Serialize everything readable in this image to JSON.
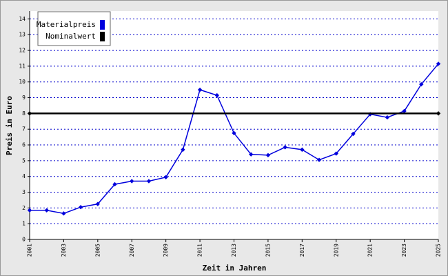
{
  "chart_data": {
    "type": "line",
    "x_label": "Zeit in Jahren",
    "y_label": "Preis in Euro",
    "series": [
      {
        "name": "Materialpreis",
        "color": "#0000dd",
        "x": [
          2001,
          2002,
          2003,
          2004,
          2005,
          2006,
          2007,
          2008,
          2009,
          2010,
          2011,
          2012,
          2013,
          2014,
          2015,
          2016,
          2017,
          2018,
          2019,
          2020,
          2021,
          2022,
          2023,
          2024,
          2025
        ],
        "values": [
          1.85,
          1.85,
          1.65,
          2.05,
          2.25,
          3.5,
          3.7,
          3.7,
          3.95,
          5.7,
          9.5,
          9.15,
          6.75,
          5.4,
          5.35,
          5.85,
          5.7,
          5.05,
          5.45,
          6.7,
          7.95,
          7.75,
          8.15,
          9.85,
          11.15
        ]
      },
      {
        "name": "Nominalwert",
        "color": "#000000",
        "x": [
          2001,
          2025
        ],
        "values": [
          8,
          8
        ]
      }
    ],
    "xlim": [
      2001,
      2025
    ],
    "xticks": [
      2001,
      2003,
      2005,
      2007,
      2009,
      2011,
      2013,
      2015,
      2017,
      2019,
      2021,
      2023,
      2025
    ],
    "ylim": [
      0,
      14.5
    ],
    "yticks": [
      0,
      1,
      2,
      3,
      4,
      5,
      6,
      7,
      8,
      9,
      10,
      11,
      12,
      13,
      14
    ],
    "grid": true,
    "legend_position": "upper left"
  }
}
